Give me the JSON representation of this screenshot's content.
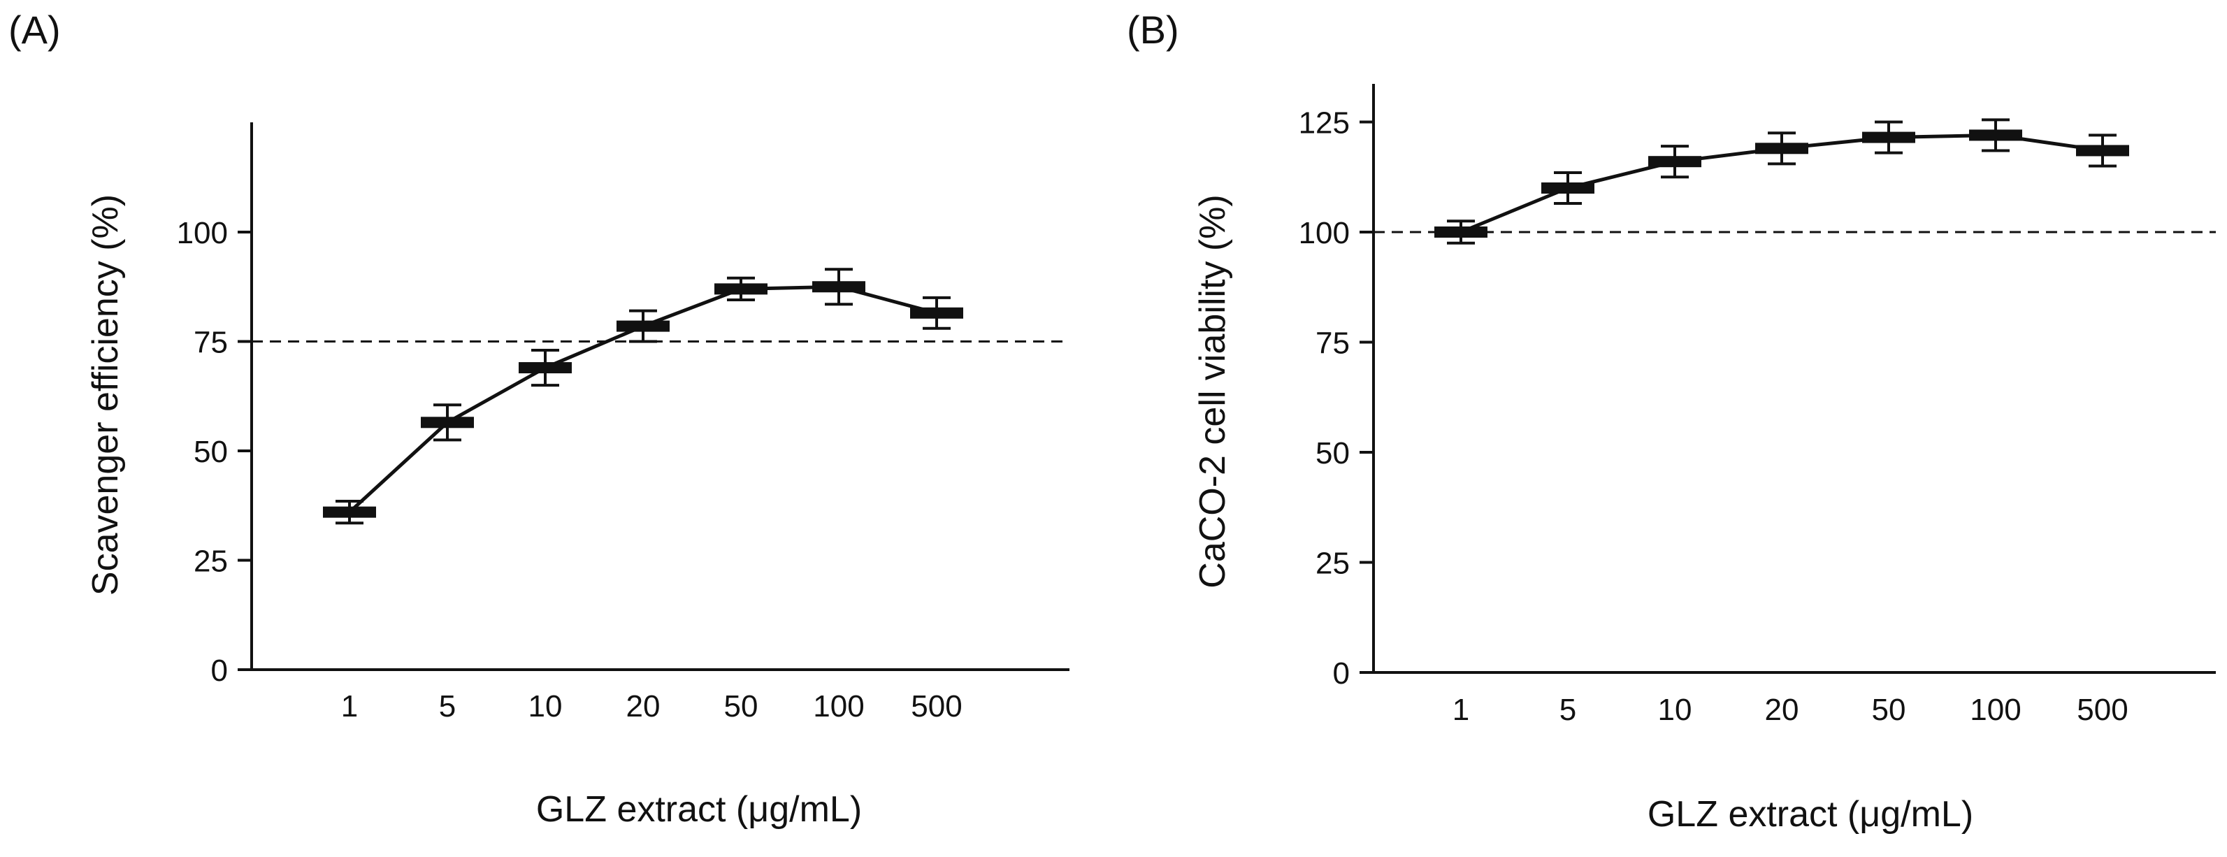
{
  "chart_data": [
    {
      "type": "line",
      "panel_label": "(A)",
      "xlabel": "GLZ extract (μg/mL)",
      "ylabel": "Scavenger efficiency (%)",
      "categories": [
        "1",
        "5",
        "10",
        "20",
        "50",
        "100",
        "500"
      ],
      "values": [
        36,
        56.5,
        69,
        78.5,
        87,
        87.5,
        81.5
      ],
      "errors": [
        2.5,
        4,
        4,
        3.5,
        2.5,
        4,
        3.5
      ],
      "yticks": [
        "0",
        "25",
        "50",
        "75",
        "100"
      ],
      "ylim": [
        0,
        125
      ],
      "reference_line": 75,
      "grid": false
    },
    {
      "type": "line",
      "panel_label": "(B)",
      "xlabel": "GLZ extract (μg/mL)",
      "ylabel": "CaCO-2 cell viability (%)",
      "categories": [
        "1",
        "5",
        "10",
        "20",
        "50",
        "100",
        "500"
      ],
      "values": [
        100,
        110,
        116,
        119,
        121.5,
        122,
        118.5
      ],
      "errors": [
        2.5,
        3.5,
        3.5,
        3.5,
        3.5,
        3.5,
        3.5
      ],
      "yticks": [
        "0",
        "25",
        "50",
        "75",
        "100",
        "125"
      ],
      "ylim": [
        0,
        135
      ],
      "reference_line": 100,
      "grid": false
    }
  ]
}
